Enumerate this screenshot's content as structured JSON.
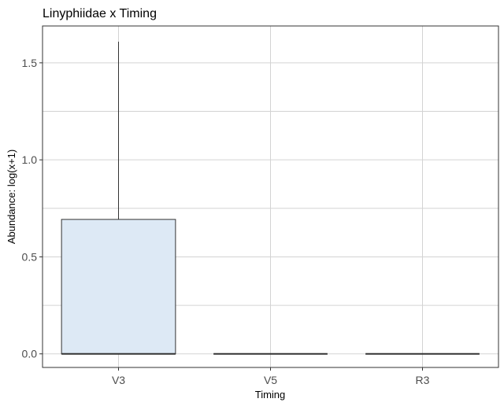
{
  "chart_data": {
    "type": "boxplot",
    "title": "Linyphiidae x Timing",
    "xlabel": "Timing",
    "ylabel": "Abundance: log(x+1)",
    "categories": [
      "V3",
      "V5",
      "R3"
    ],
    "ylim": [
      -0.07,
      1.69
    ],
    "yticks": [
      "0.0",
      "0.5",
      "1.0",
      "1.5"
    ],
    "grid": true,
    "series": [
      {
        "boxes": [
          {
            "category": "V3",
            "min": 0.0,
            "q1": 0.0,
            "median": 0.0,
            "q3": 0.693,
            "max": 1.609
          },
          {
            "category": "V5",
            "min": 0.0,
            "q1": 0.0,
            "median": 0.0,
            "q3": 0.0,
            "max": 0.0
          },
          {
            "category": "R3",
            "min": 0.0,
            "q1": 0.0,
            "median": 0.0,
            "q3": 0.0,
            "max": 0.0
          }
        ]
      }
    ],
    "colors": {
      "box_fill": "#dde9f5",
      "box_stroke": "#333333",
      "grid": "#d3d3d3",
      "panel_border": "#333333"
    }
  }
}
